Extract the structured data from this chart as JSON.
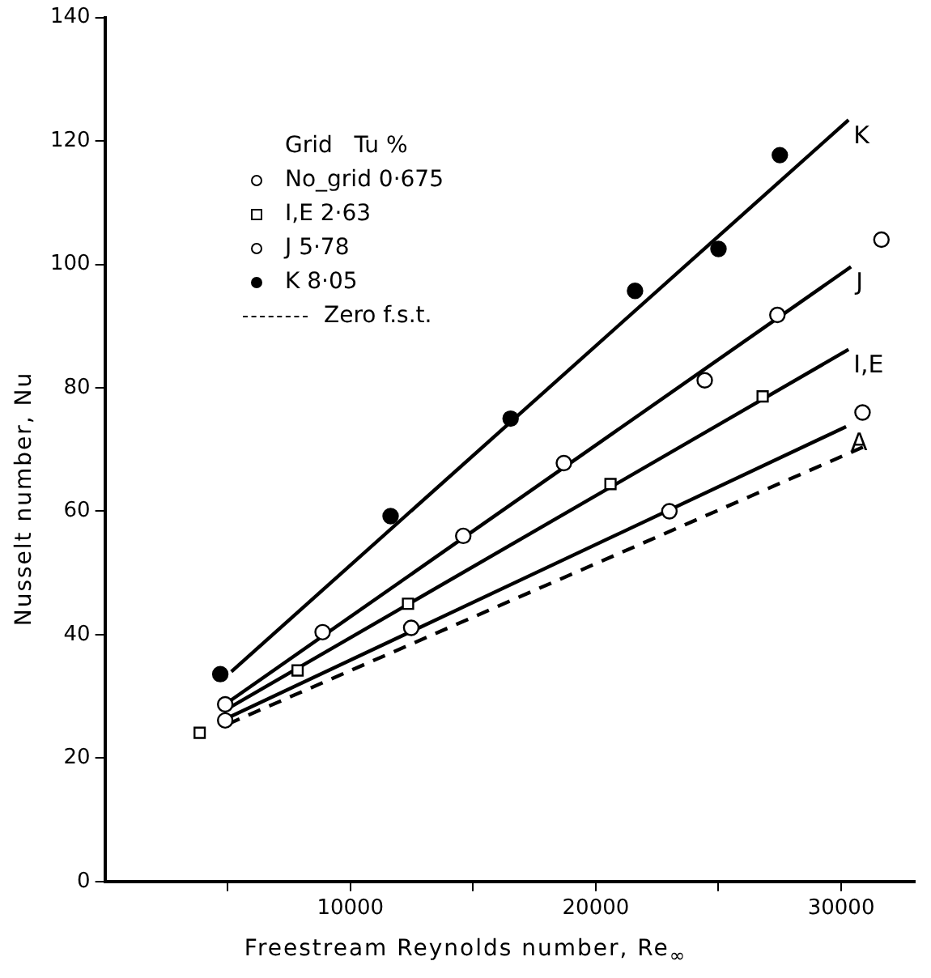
{
  "chart_data": {
    "type": "scatter",
    "xlabel": "Freestream Reynolds number,  Re$_{∞}$",
    "ylabel": "Nusselt number,  Nu",
    "legend_title": "Grid   Tu %",
    "legend": "top left",
    "grid": false,
    "xlim": [
      0,
      33000
    ],
    "xticks": [
      {
        "value": 5000,
        "label": null
      },
      10000,
      {
        "value": 15000,
        "label": null
      },
      20000,
      {
        "value": 25000,
        "label": null
      },
      30000
    ],
    "ylim": [
      0,
      140
    ],
    "yticks": [
      0,
      20,
      40,
      60,
      80,
      100,
      120,
      140
    ],
    "series": [
      {
        "name": "No_grid 0·675",
        "marker": "circle",
        "color": "#ffffff",
        "x": [
          4900,
          12480,
          23000,
          30870
        ],
        "values": [
          26.1,
          41.1,
          60,
          76
        ]
      },
      {
        "name": "I,E 2·63",
        "marker": "square",
        "color": "#ffffff",
        "x": [
          3860,
          7850,
          12350,
          20600,
          26800
        ],
        "values": [
          24.1,
          34.2,
          45,
          64.4,
          78.6
        ]
      },
      {
        "name": "J 5·78",
        "marker": "circle",
        "color": "#ffffff",
        "x": [
          4900,
          8870,
          14600,
          18700,
          24440,
          27400,
          31640
        ],
        "values": [
          28.7,
          40.4,
          56,
          67.8,
          81.2,
          91.8,
          104
        ]
      },
      {
        "name": "K 8·05",
        "marker": "circle",
        "color": "#000000",
        "x": [
          4700,
          11640,
          16530,
          21600,
          25000,
          27500
        ],
        "values": [
          33.6,
          59.2,
          75,
          95.7,
          102.5,
          117.7
        ]
      },
      {
        "name": "Zero f.s.t.",
        "type": "line",
        "line_style": "dashed",
        "color": "#000000",
        "x": [
          5000,
          30900
        ],
        "values": [
          25.5,
          70.4
        ]
      },
      {
        "name": "K",
        "type": "line",
        "line_style": "solid",
        "color": "#000000",
        "x": [
          5150,
          30300
        ],
        "values": [
          34,
          123.4
        ]
      },
      {
        "name": "J",
        "type": "line",
        "line_style": "solid",
        "color": "#000000",
        "x": [
          5000,
          30400
        ],
        "values": [
          29,
          99.6
        ]
      },
      {
        "name": "I,E",
        "type": "line",
        "line_style": "solid",
        "color": "#000000",
        "x": [
          5000,
          30300
        ],
        "values": [
          28,
          86.2
        ]
      },
      {
        "name": "A",
        "type": "line",
        "line_style": "solid",
        "color": "#000000",
        "x": [
          5000,
          30200
        ],
        "values": [
          26.5,
          73.7
        ]
      }
    ]
  }
}
